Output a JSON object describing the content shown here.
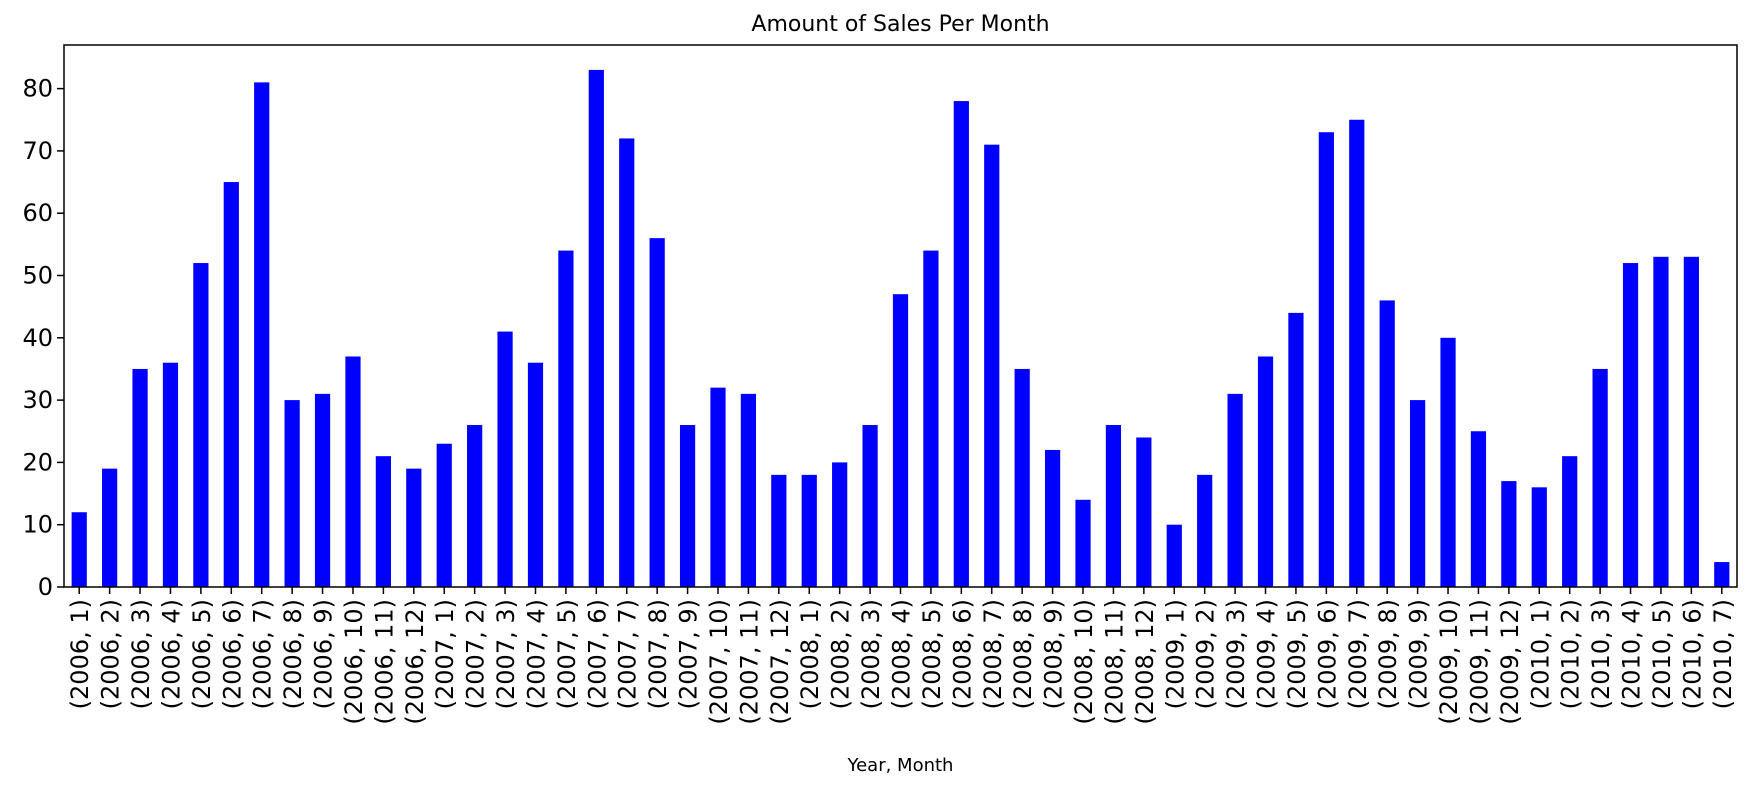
{
  "chart_data": {
    "type": "bar",
    "title": "Amount of Sales Per Month",
    "xlabel": "Year, Month",
    "ylabel": "",
    "ylim": [
      0,
      87
    ],
    "yticks": [
      0,
      10,
      20,
      30,
      40,
      50,
      60,
      70,
      80
    ],
    "bar_color": "#0000ff",
    "grid": false,
    "legend": "none",
    "categories": [
      "(2006, 1)",
      "(2006, 2)",
      "(2006, 3)",
      "(2006, 4)",
      "(2006, 5)",
      "(2006, 6)",
      "(2006, 7)",
      "(2006, 8)",
      "(2006, 9)",
      "(2006, 10)",
      "(2006, 11)",
      "(2006, 12)",
      "(2007, 1)",
      "(2007, 2)",
      "(2007, 3)",
      "(2007, 4)",
      "(2007, 5)",
      "(2007, 6)",
      "(2007, 7)",
      "(2007, 8)",
      "(2007, 9)",
      "(2007, 10)",
      "(2007, 11)",
      "(2007, 12)",
      "(2008, 1)",
      "(2008, 2)",
      "(2008, 3)",
      "(2008, 4)",
      "(2008, 5)",
      "(2008, 6)",
      "(2008, 7)",
      "(2008, 8)",
      "(2008, 9)",
      "(2008, 10)",
      "(2008, 11)",
      "(2008, 12)",
      "(2009, 1)",
      "(2009, 2)",
      "(2009, 3)",
      "(2009, 4)",
      "(2009, 5)",
      "(2009, 6)",
      "(2009, 7)",
      "(2009, 8)",
      "(2009, 9)",
      "(2009, 10)",
      "(2009, 11)",
      "(2009, 12)",
      "(2010, 1)",
      "(2010, 2)",
      "(2010, 3)",
      "(2010, 4)",
      "(2010, 5)",
      "(2010, 6)",
      "(2010, 7)"
    ],
    "values": [
      12,
      19,
      35,
      36,
      52,
      65,
      81,
      30,
      31,
      37,
      21,
      19,
      23,
      26,
      41,
      36,
      54,
      83,
      72,
      56,
      26,
      32,
      31,
      18,
      18,
      20,
      26,
      47,
      54,
      78,
      71,
      35,
      22,
      14,
      26,
      24,
      10,
      18,
      31,
      37,
      44,
      73,
      75,
      46,
      30,
      40,
      25,
      17,
      16,
      21,
      35,
      52,
      53,
      53,
      4
    ]
  }
}
